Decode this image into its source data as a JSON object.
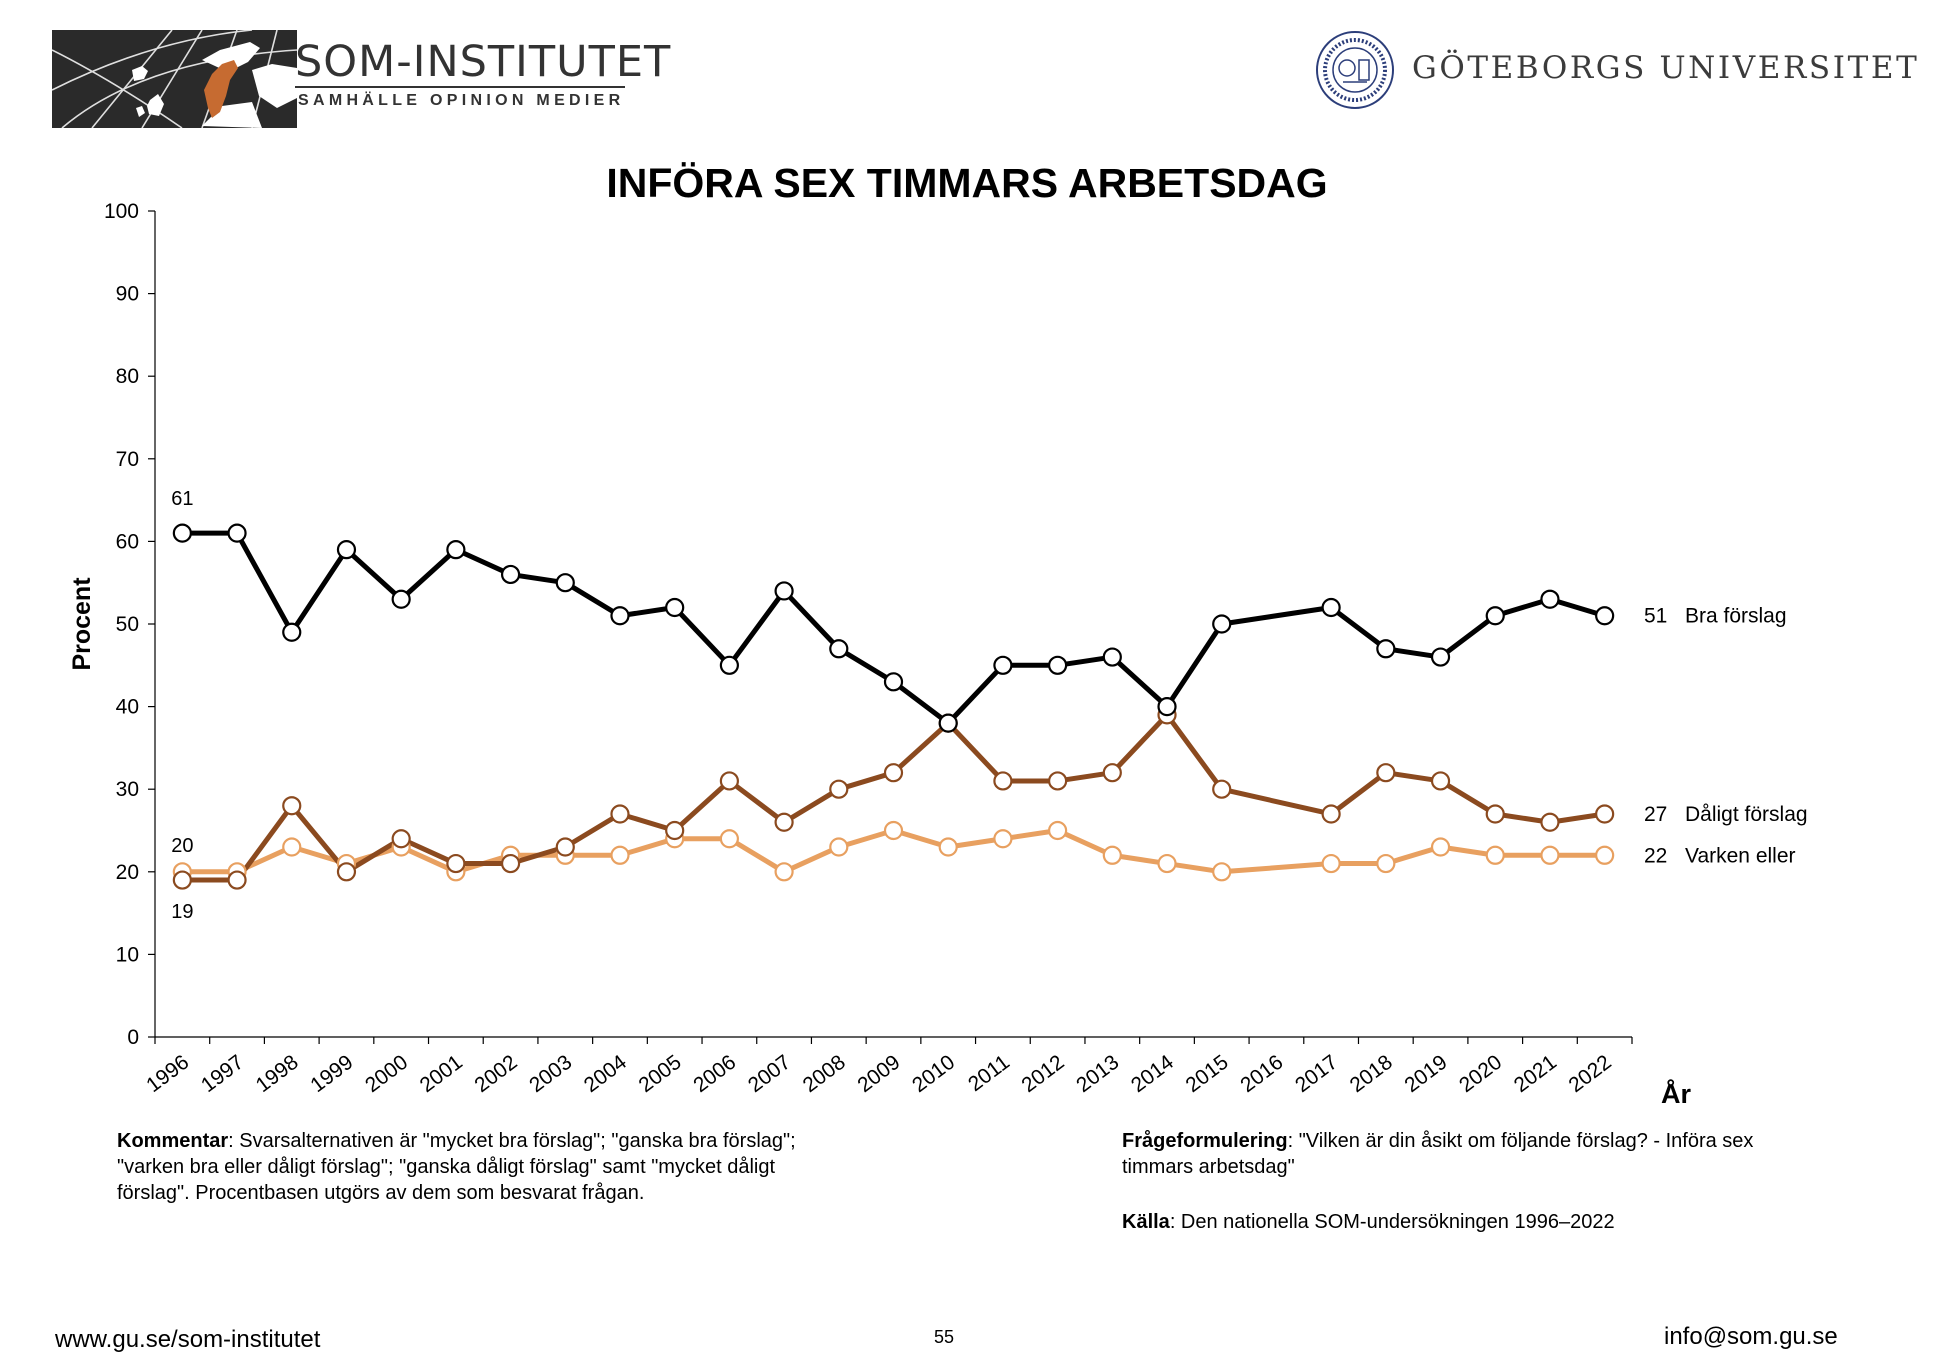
{
  "header": {
    "som_title": "SOM-INSTITUTET",
    "som_subtitle": "SAMHÄLLE OPINION MEDIER",
    "university_name": "GÖTEBORGS UNIVERSITET",
    "colors": {
      "map_bg": "#2a2a2a",
      "sweden": "#c66b31"
    }
  },
  "chart_data": {
    "type": "line",
    "title": "INFÖRA SEX TIMMARS ARBETSDAG",
    "ylabel": "Procent",
    "xlabel": "År",
    "ylim": [
      0,
      100
    ],
    "yticks": [
      0,
      10,
      20,
      30,
      40,
      50,
      60,
      70,
      80,
      90,
      100
    ],
    "grid": false,
    "categories": [
      "1996",
      "1997",
      "1998",
      "1999",
      "2000",
      "2001",
      "2002",
      "2003",
      "2004",
      "2005",
      "2006",
      "2007",
      "2008",
      "2009",
      "2010",
      "2011",
      "2012",
      "2013",
      "2014",
      "2015",
      "2016",
      "2017",
      "2018",
      "2019",
      "2020",
      "2021",
      "2022"
    ],
    "series": [
      {
        "name": "Bra förslag",
        "color": "#000000",
        "values": [
          61,
          61,
          49,
          59,
          53,
          59,
          56,
          55,
          51,
          52,
          45,
          54,
          47,
          43,
          38,
          45,
          45,
          46,
          40,
          50,
          null,
          52,
          47,
          46,
          51,
          53,
          51
        ]
      },
      {
        "name": "Dåligt förslag",
        "color": "#8b4a1f",
        "values": [
          19,
          19,
          28,
          20,
          24,
          21,
          21,
          23,
          27,
          25,
          31,
          26,
          30,
          32,
          38,
          31,
          31,
          32,
          39,
          30,
          null,
          27,
          32,
          31,
          27,
          26,
          27
        ]
      },
      {
        "name": "Varken eller",
        "color": "#e8a060",
        "values": [
          20,
          20,
          23,
          21,
          23,
          20,
          22,
          22,
          22,
          24,
          24,
          20,
          23,
          25,
          23,
          24,
          25,
          22,
          21,
          20,
          null,
          21,
          21,
          23,
          22,
          22,
          22
        ]
      }
    ],
    "start_labels": [
      {
        "series": 0,
        "text": "61"
      },
      {
        "series": 2,
        "text": "20"
      },
      {
        "series": 1,
        "text": "19"
      }
    ],
    "end_labels": [
      {
        "series": 0,
        "value": "51",
        "name": "Bra förslag"
      },
      {
        "series": 1,
        "value": "27",
        "name": "Dåligt förslag"
      },
      {
        "series": 2,
        "value": "22",
        "name": "Varken eller"
      }
    ]
  },
  "notes": {
    "comment_label": "Kommentar",
    "comment_text": ": Svarsalternativen är \"mycket bra förslag\"; \"ganska bra förslag\"; \"varken bra eller dåligt förslag\"; \"ganska dåligt förslag\" samt \"mycket dåligt förslag\". Procentbasen utgörs av dem som besvarat frågan.",
    "question_label": "Frågeformulering",
    "question_text": ": \"Vilken är din åsikt om följande förslag? - Införa sex timmars arbetsdag\"",
    "source_label": "Källa",
    "source_text": ": Den nationella SOM-undersökningen 1996–2022"
  },
  "footer": {
    "website": "www.gu.se/som-institutet",
    "page_number": "55",
    "email": "info@som.gu.se"
  }
}
